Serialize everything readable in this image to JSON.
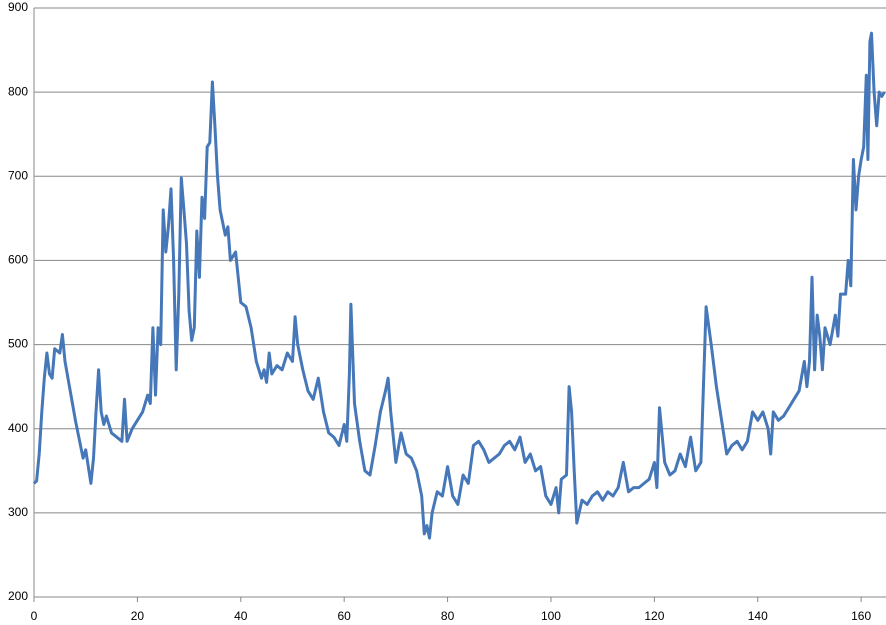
{
  "chart_data": {
    "type": "line",
    "xlim": [
      0,
      165
    ],
    "ylim": [
      200,
      900
    ],
    "xticks": [
      0,
      20,
      40,
      60,
      80,
      100,
      120,
      140,
      160
    ],
    "yticks": [
      200,
      300,
      400,
      500,
      600,
      700,
      800,
      900
    ],
    "grid": true,
    "series": [
      {
        "color": "#4677b8",
        "x": [
          0,
          0.5,
          1,
          1.5,
          2,
          2.5,
          3,
          3.5,
          4,
          5,
          5.5,
          6,
          7,
          8,
          9,
          9.5,
          10,
          11,
          11.5,
          12,
          12.5,
          13,
          13.5,
          14,
          15,
          16,
          17,
          17.5,
          18,
          19,
          20,
          21,
          22,
          22.5,
          23,
          23.5,
          24,
          24.5,
          25,
          25.5,
          26,
          26.5,
          27,
          27.5,
          28,
          28.5,
          29,
          29.5,
          30,
          30.5,
          31,
          31.5,
          32,
          32.5,
          33,
          33.5,
          34,
          34.5,
          35,
          35.5,
          36,
          37,
          37.5,
          38,
          39,
          40,
          41,
          42,
          43,
          44,
          44.5,
          45,
          45.5,
          46,
          47,
          48,
          49,
          50,
          50.5,
          51,
          52,
          53,
          54,
          55,
          56,
          57,
          58,
          59,
          60,
          60.5,
          61,
          61.3,
          62,
          63,
          64,
          65,
          66,
          67,
          68,
          68.5,
          69,
          70,
          71,
          72,
          73,
          74,
          75,
          75.5,
          76,
          76.5,
          77,
          78,
          79,
          80,
          81,
          82,
          83,
          84,
          85,
          86,
          87,
          88,
          89,
          90,
          91,
          92,
          93,
          94,
          95,
          96,
          97,
          98,
          99,
          100,
          101,
          101.5,
          102,
          103,
          103.5,
          104,
          104.5,
          105,
          106,
          107,
          108,
          109,
          110,
          111,
          112,
          113,
          114,
          115,
          116,
          117,
          118,
          119,
          120,
          120.5,
          121,
          122,
          123,
          124,
          125,
          126,
          127,
          128,
          129,
          130,
          131,
          132,
          133,
          134,
          135,
          136,
          137,
          138,
          139,
          140,
          141,
          142,
          142.5,
          143,
          144,
          145,
          146,
          147,
          148,
          149,
          149.5,
          150,
          150.5,
          151,
          151.5,
          152,
          152.5,
          153,
          154,
          155,
          155.5,
          156,
          157,
          157.5,
          158,
          158.5,
          159,
          159.5,
          160,
          160.5,
          161,
          161.3,
          161.7,
          162,
          162.5,
          163,
          163.5,
          164,
          164.5
        ],
        "values": [
          335,
          338,
          370,
          420,
          460,
          490,
          465,
          460,
          495,
          490,
          512,
          480,
          445,
          410,
          380,
          365,
          375,
          335,
          365,
          420,
          470,
          420,
          405,
          415,
          395,
          390,
          385,
          435,
          385,
          400,
          410,
          420,
          440,
          430,
          520,
          440,
          520,
          500,
          660,
          610,
          640,
          685,
          600,
          470,
          560,
          698,
          660,
          620,
          540,
          505,
          520,
          635,
          580,
          675,
          650,
          735,
          740,
          812,
          760,
          700,
          660,
          630,
          640,
          600,
          610,
          550,
          545,
          520,
          480,
          460,
          470,
          455,
          490,
          465,
          475,
          470,
          490,
          480,
          533,
          500,
          470,
          445,
          435,
          460,
          420,
          395,
          390,
          380,
          405,
          385,
          465,
          548,
          430,
          385,
          350,
          345,
          380,
          420,
          445,
          460,
          420,
          360,
          395,
          370,
          365,
          350,
          320,
          275,
          285,
          270,
          300,
          325,
          320,
          355,
          320,
          310,
          345,
          335,
          380,
          385,
          375,
          360,
          365,
          370,
          380,
          385,
          375,
          390,
          360,
          370,
          350,
          355,
          320,
          310,
          330,
          300,
          340,
          345,
          450,
          420,
          350,
          288,
          315,
          310,
          320,
          325,
          315,
          325,
          320,
          330,
          360,
          325,
          330,
          330,
          335,
          340,
          360,
          330,
          425,
          360,
          345,
          350,
          370,
          355,
          390,
          350,
          360,
          545,
          500,
          450,
          410,
          370,
          380,
          385,
          375,
          385,
          420,
          410,
          420,
          400,
          370,
          420,
          410,
          415,
          425,
          435,
          445,
          480,
          450,
          480,
          580,
          470,
          535,
          510,
          470,
          520,
          500,
          535,
          510,
          560,
          560,
          600,
          570,
          720,
          660,
          700,
          720,
          735,
          820,
          720,
          860,
          870,
          800,
          760,
          800,
          795,
          800
        ]
      }
    ]
  }
}
